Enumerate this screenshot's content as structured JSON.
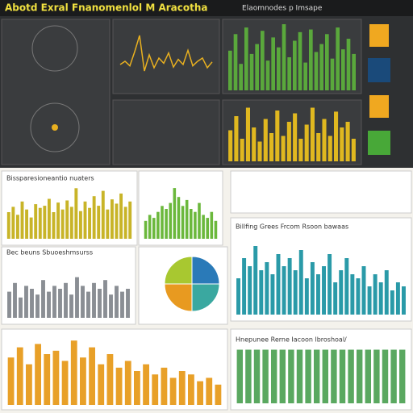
{
  "header": {
    "title": "Abotd Exral Fnanomenlol M Aracotha",
    "subtitle": "Elaomnodes p Imsape"
  },
  "panels": [
    {
      "type": "line",
      "color": "#e8b020",
      "ylim": [
        0,
        100
      ],
      "values": [
        40,
        45,
        38,
        60,
        85,
        30,
        55,
        35,
        50,
        42,
        58,
        36,
        48,
        40,
        62,
        38,
        45,
        50,
        35,
        44
      ]
    },
    {
      "type": "bar",
      "color": "#5aa83c",
      "ylim": [
        0,
        100
      ],
      "values": [
        60,
        85,
        40,
        95,
        55,
        70,
        90,
        45,
        80,
        65,
        100,
        50,
        75,
        88,
        42,
        92,
        58,
        70,
        85,
        48,
        95,
        62,
        78,
        55
      ]
    },
    {
      "type": "bar",
      "color": "#e0b820",
      "ylim": [
        0,
        100
      ],
      "values": [
        55,
        80,
        40,
        95,
        60,
        35,
        75,
        50,
        90,
        45,
        70,
        85,
        40,
        65,
        95,
        50,
        75,
        45,
        88,
        60,
        70,
        40
      ]
    },
    {
      "type": "bar",
      "title": "Bissparesioneantio nuaters",
      "color": "#c8b428",
      "ylim": [
        0,
        100
      ],
      "values": [
        50,
        60,
        45,
        70,
        55,
        40,
        65,
        58,
        62,
        75,
        50,
        68,
        55,
        72,
        60,
        95,
        52,
        70,
        58,
        80,
        62,
        90,
        55,
        74,
        66,
        85,
        60,
        70
      ]
    },
    {
      "type": "bar",
      "color": "#6bb83c",
      "ylim": [
        0,
        100
      ],
      "values": [
        30,
        40,
        35,
        45,
        55,
        50,
        60,
        85,
        70,
        55,
        65,
        50,
        45,
        60,
        40,
        35,
        45,
        30
      ]
    },
    {
      "type": "bar",
      "title": "Billfing Grees Frcom Rsoon bawaas",
      "color": "#2a9aa8",
      "ylim": [
        0,
        100
      ],
      "values": [
        45,
        70,
        60,
        85,
        55,
        65,
        50,
        75,
        60,
        70,
        55,
        80,
        45,
        65,
        50,
        60,
        75,
        40,
        55,
        70,
        50,
        45,
        60,
        35,
        50,
        40,
        55,
        30,
        40,
        35
      ]
    },
    {
      "type": "bar",
      "title": "Bec beuns Sbuoeshmsurss",
      "color": "#8a8e94",
      "ylim": [
        0,
        100
      ],
      "values": [
        45,
        60,
        35,
        55,
        50,
        40,
        65,
        45,
        55,
        50,
        60,
        40,
        70,
        55,
        45,
        60,
        50,
        65,
        40,
        55,
        45,
        50
      ]
    },
    {
      "type": "pie",
      "colors": [
        "#2a7ab8",
        "#3aa8a0",
        "#e89a20",
        "#a8c830"
      ],
      "values": [
        25,
        25,
        25,
        25
      ]
    },
    {
      "type": "bar",
      "color": "#e8a028",
      "ylim": [
        0,
        100
      ],
      "values": [
        70,
        85,
        60,
        90,
        75,
        80,
        65,
        95,
        70,
        85,
        60,
        75,
        55,
        65,
        50,
        60,
        45,
        55,
        40,
        50,
        45,
        35,
        40,
        30
      ]
    },
    {
      "type": "bar",
      "title": "Hnepunee Rerne Iacoon lbroshoal/",
      "color": "#5aa860",
      "ylim": [
        0,
        100
      ],
      "values": [
        95,
        95,
        95,
        95,
        95,
        95,
        95,
        95,
        95,
        95,
        95,
        95,
        95,
        95,
        95,
        95,
        95,
        95,
        95,
        95
      ]
    }
  ]
}
